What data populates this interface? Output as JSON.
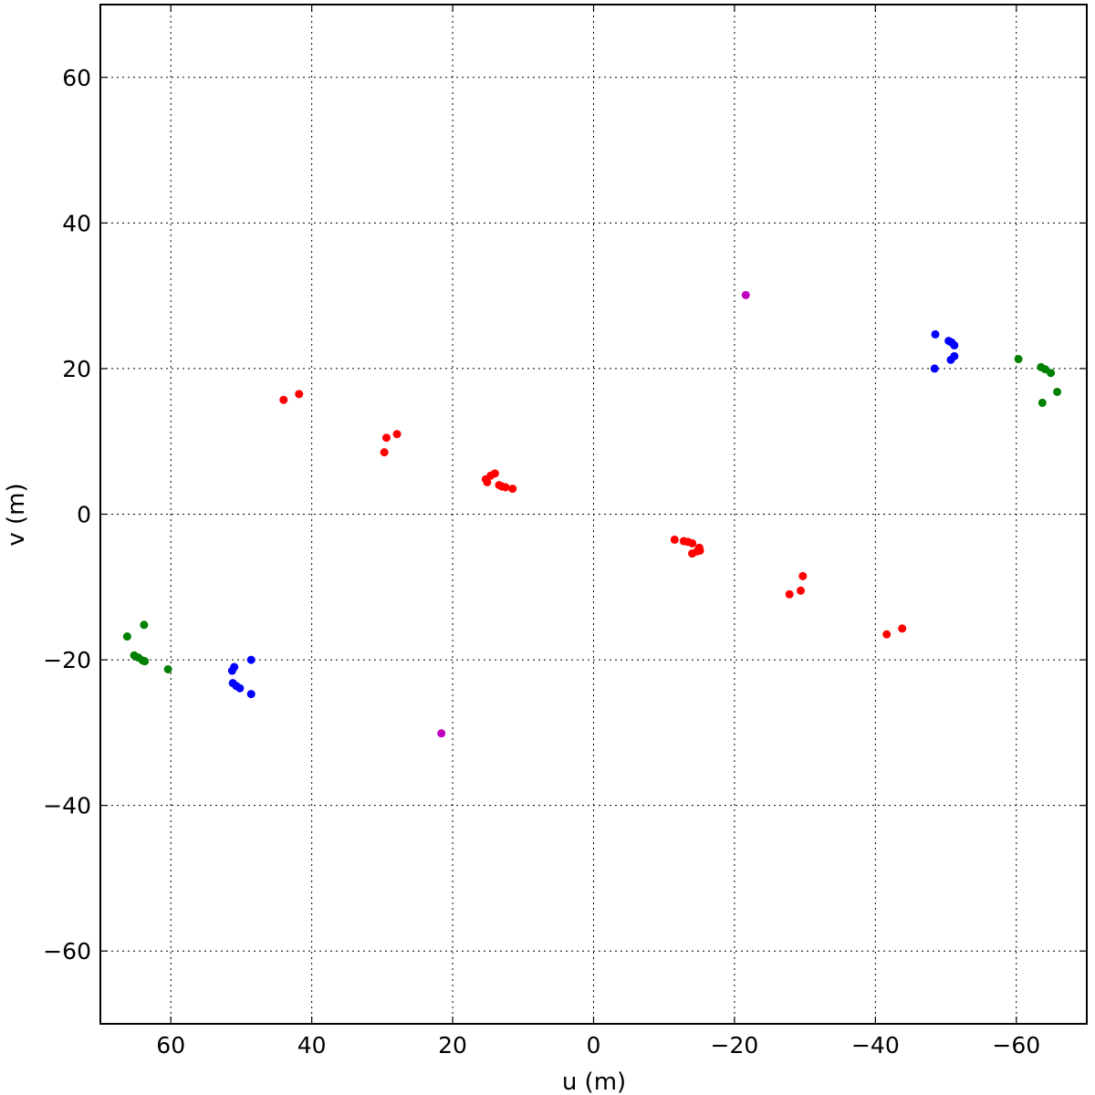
{
  "chart_data": {
    "type": "scatter",
    "xlabel": "u (m)",
    "ylabel": "v (m)",
    "xlim": [
      70,
      -70
    ],
    "ylim": [
      -70,
      70
    ],
    "grid": true,
    "x_ticks": [
      60,
      40,
      20,
      0,
      -20,
      -40,
      -60
    ],
    "y_ticks": [
      60,
      40,
      20,
      0,
      -20,
      -40,
      -60
    ],
    "x_tick_labels": [
      "60",
      "40",
      "20",
      "0",
      "−20",
      "−40",
      "−60"
    ],
    "y_tick_labels": [
      "60",
      "40",
      "20",
      "0",
      "−20",
      "−40",
      "−60"
    ],
    "series": [
      {
        "color": "#ff0000",
        "points": [
          [
            44.0,
            15.7
          ],
          [
            41.8,
            16.5
          ],
          [
            29.4,
            10.5
          ],
          [
            29.7,
            8.5
          ],
          [
            27.9,
            11.0
          ],
          [
            15.3,
            4.8
          ],
          [
            15.1,
            4.4
          ],
          [
            14.6,
            5.3
          ],
          [
            14.0,
            5.6
          ],
          [
            13.4,
            4.0
          ],
          [
            13.0,
            3.8
          ],
          [
            12.5,
            3.7
          ],
          [
            11.5,
            3.5
          ],
          [
            -11.5,
            -3.5
          ],
          [
            -12.8,
            -3.7
          ],
          [
            -13.4,
            -3.8
          ],
          [
            -14.0,
            -4.0
          ],
          [
            -14.0,
            -5.4
          ],
          [
            -14.7,
            -5.1
          ],
          [
            -15.0,
            -4.6
          ],
          [
            -15.1,
            -5.0
          ],
          [
            -27.8,
            -11.0
          ],
          [
            -29.4,
            -10.5
          ],
          [
            -29.7,
            -8.5
          ],
          [
            -41.6,
            -16.5
          ],
          [
            -43.8,
            -15.7
          ]
        ]
      },
      {
        "color": "#0000ff",
        "points": [
          [
            51.3,
            -21.5
          ],
          [
            51.0,
            -21.0
          ],
          [
            51.2,
            -23.2
          ],
          [
            50.7,
            -23.6
          ],
          [
            50.2,
            -23.9
          ],
          [
            48.6,
            -20.0
          ],
          [
            48.6,
            -24.7
          ],
          [
            -48.5,
            24.7
          ],
          [
            -50.4,
            23.8
          ],
          [
            -50.8,
            23.6
          ],
          [
            -51.2,
            23.2
          ],
          [
            -50.7,
            21.2
          ],
          [
            -51.2,
            21.7
          ],
          [
            -48.4,
            20.0
          ]
        ]
      },
      {
        "color": "#008000",
        "points": [
          [
            66.2,
            -16.8
          ],
          [
            65.2,
            -19.4
          ],
          [
            64.6,
            -19.7
          ],
          [
            64.0,
            -20.1
          ],
          [
            63.7,
            -20.2
          ],
          [
            63.8,
            -15.2
          ],
          [
            60.4,
            -21.3
          ],
          [
            -60.3,
            21.3
          ],
          [
            -63.5,
            20.2
          ],
          [
            -64.1,
            19.9
          ],
          [
            -64.9,
            19.4
          ],
          [
            -63.7,
            15.3
          ],
          [
            -65.8,
            16.8
          ]
        ]
      },
      {
        "color": "#bf00bf",
        "points": [
          [
            21.6,
            -30.1
          ],
          [
            -21.6,
            30.1
          ]
        ]
      }
    ]
  }
}
